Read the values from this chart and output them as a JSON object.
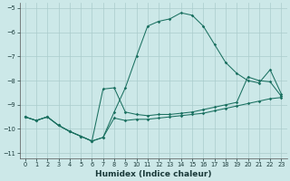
{
  "xlabel": "Humidex (Indice chaleur)",
  "bg_color": "#cce8e8",
  "grid_color": "#aacccc",
  "line_color": "#1a7060",
  "xlim": [
    -0.5,
    23.5
  ],
  "ylim": [
    -11.2,
    -4.8
  ],
  "yticks": [
    -11,
    -10,
    -9,
    -8,
    -7,
    -6,
    -5
  ],
  "xticks": [
    0,
    1,
    2,
    3,
    4,
    5,
    6,
    7,
    8,
    9,
    10,
    11,
    12,
    13,
    14,
    15,
    16,
    17,
    18,
    19,
    20,
    21,
    22,
    23
  ],
  "line1_x": [
    0,
    1,
    2,
    3,
    4,
    5,
    6,
    7,
    8,
    9,
    10,
    11,
    12,
    13,
    14,
    15,
    16,
    17,
    18,
    19,
    20,
    21,
    22,
    23
  ],
  "line1_y": [
    -9.5,
    -9.65,
    -9.5,
    -9.85,
    -10.1,
    -10.3,
    -10.5,
    -10.35,
    -9.3,
    -8.3,
    -7.0,
    -5.75,
    -5.55,
    -5.45,
    -5.2,
    -5.3,
    -5.75,
    -6.5,
    -7.25,
    -7.7,
    -8.0,
    -8.1,
    -7.55,
    -8.55
  ],
  "line2_x": [
    0,
    1,
    2,
    3,
    4,
    5,
    6,
    7,
    8,
    9,
    10,
    11,
    12,
    13,
    14,
    15,
    16,
    17,
    18,
    19,
    20,
    21,
    22,
    23
  ],
  "line2_y": [
    -9.5,
    -9.65,
    -9.5,
    -9.85,
    -10.1,
    -10.3,
    -10.5,
    -8.35,
    -8.3,
    -9.3,
    -9.4,
    -9.45,
    -9.4,
    -9.4,
    -9.35,
    -9.3,
    -9.2,
    -9.1,
    -9.0,
    -8.9,
    -7.85,
    -8.0,
    -8.05,
    -8.65
  ],
  "line3_x": [
    0,
    1,
    2,
    3,
    4,
    5,
    6,
    7,
    8,
    9,
    10,
    11,
    12,
    13,
    14,
    15,
    16,
    17,
    18,
    19,
    20,
    21,
    22,
    23
  ],
  "line3_y": [
    -9.5,
    -9.65,
    -9.5,
    -9.85,
    -10.1,
    -10.3,
    -10.5,
    -10.35,
    -9.55,
    -9.65,
    -9.6,
    -9.6,
    -9.55,
    -9.5,
    -9.45,
    -9.4,
    -9.35,
    -9.25,
    -9.15,
    -9.05,
    -8.95,
    -8.85,
    -8.75,
    -8.7
  ]
}
